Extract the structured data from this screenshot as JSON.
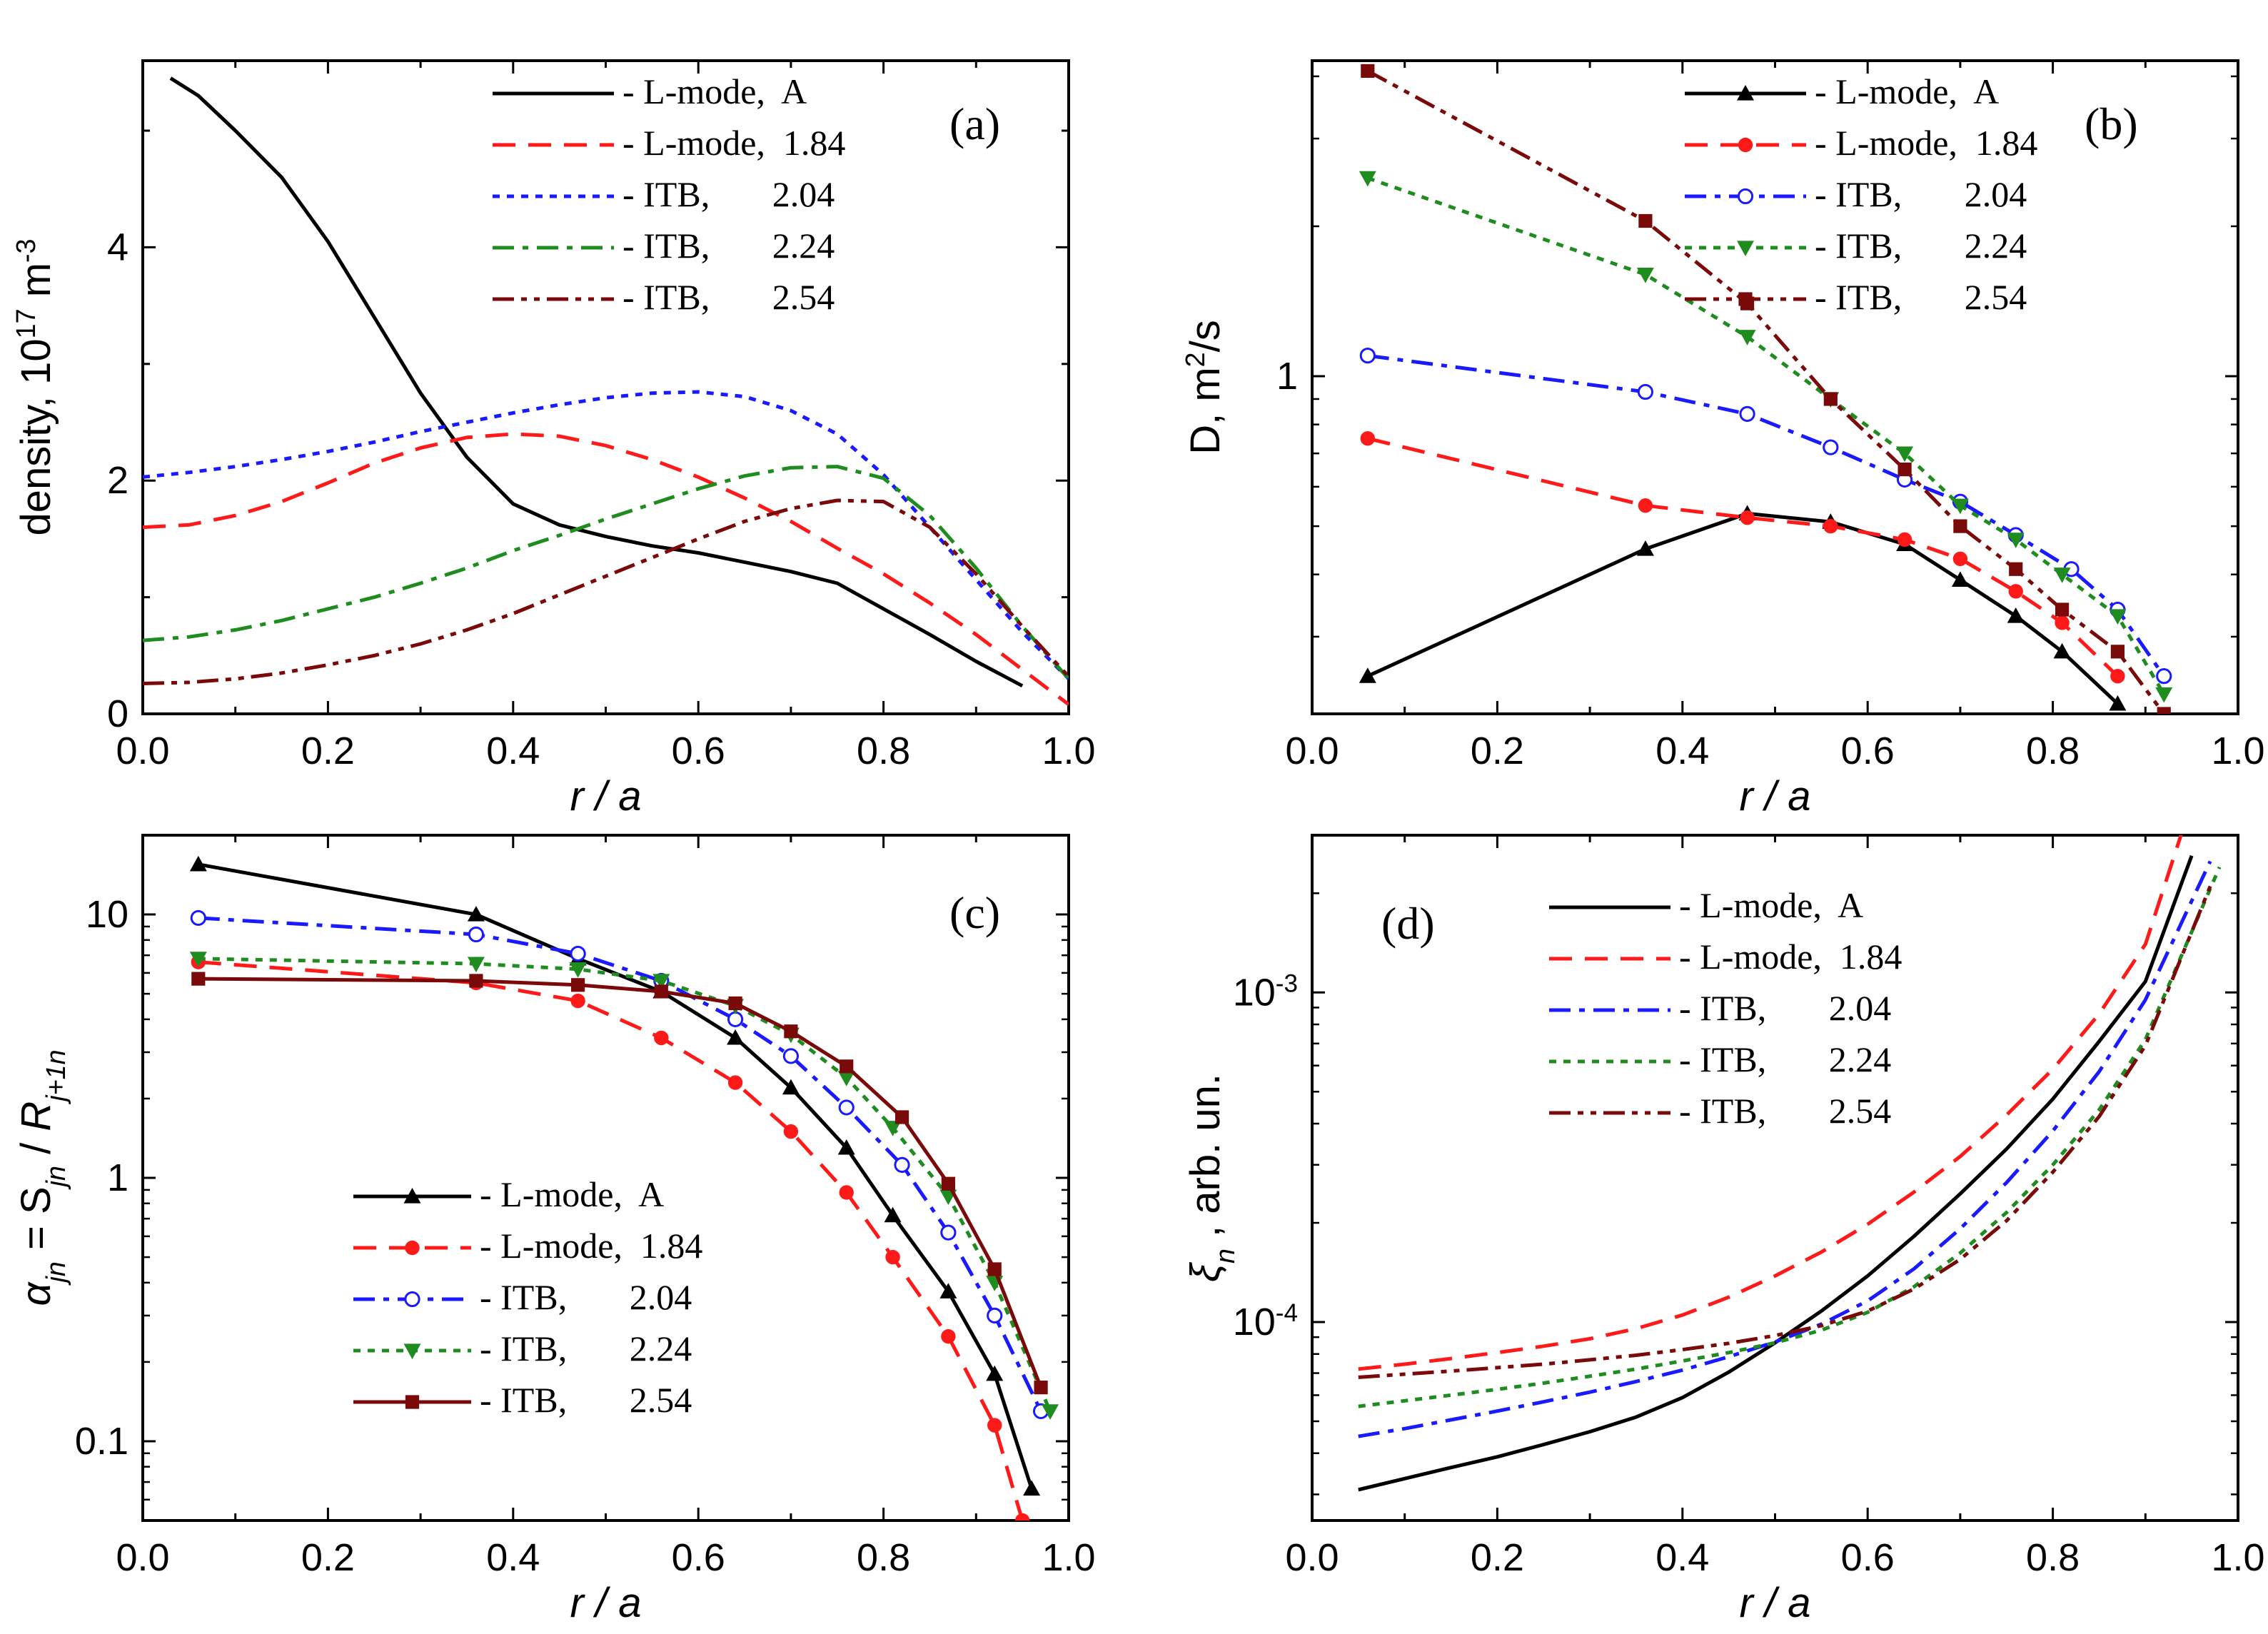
{
  "figure": {
    "colors": {
      "black": "#000000",
      "red": "#ff1a1a",
      "blue": "#1a1aff",
      "green": "#1e8c1e",
      "darkred": "#7a0a0a"
    }
  },
  "chart_data": [
    {
      "id": "a",
      "type": "line",
      "tag": "(a)",
      "xlabel": "r / a",
      "ylabel": "density, 10^17 m^-3",
      "xlim": [
        0.0,
        1.0
      ],
      "ylim": [
        0.0,
        5.6
      ],
      "yscale": "linear",
      "xticks": [
        0.0,
        0.2,
        0.4,
        0.6,
        0.8,
        1.0
      ],
      "xtick_labels": [
        "0.0",
        "0.2",
        "0.4",
        "0.6",
        "0.8",
        "1.0"
      ],
      "yticks": [
        0,
        2,
        4
      ],
      "ytick_labels": [
        "0",
        "2",
        "4"
      ],
      "legend_position": "top-center",
      "series": [
        {
          "name": "- L-mode,  A",
          "style": "solid",
          "color": "#000000",
          "marker": null,
          "x": [
            0.03,
            0.06,
            0.1,
            0.15,
            0.2,
            0.25,
            0.3,
            0.35,
            0.4,
            0.45,
            0.5,
            0.55,
            0.6,
            0.65,
            0.7,
            0.75,
            0.8,
            0.85,
            0.9,
            0.95
          ],
          "y": [
            5.45,
            5.3,
            5.0,
            4.6,
            4.05,
            3.4,
            2.75,
            2.2,
            1.8,
            1.62,
            1.52,
            1.44,
            1.38,
            1.3,
            1.22,
            1.12,
            0.9,
            0.68,
            0.45,
            0.24
          ]
        },
        {
          "name": "- L-mode,  1.84",
          "style": "dash",
          "color": "#ff1a1a",
          "marker": null,
          "x": [
            0.0,
            0.05,
            0.1,
            0.15,
            0.2,
            0.25,
            0.3,
            0.35,
            0.4,
            0.45,
            0.5,
            0.55,
            0.6,
            0.65,
            0.7,
            0.75,
            0.8,
            0.85,
            0.9,
            0.95,
            1.0
          ],
          "y": [
            1.6,
            1.62,
            1.7,
            1.82,
            1.98,
            2.15,
            2.28,
            2.37,
            2.4,
            2.38,
            2.3,
            2.18,
            2.03,
            1.85,
            1.65,
            1.42,
            1.2,
            0.95,
            0.68,
            0.38,
            0.08
          ]
        },
        {
          "name": "- ITB,       2.04",
          "style": "dot",
          "color": "#1a1aff",
          "marker": null,
          "x": [
            0.0,
            0.05,
            0.1,
            0.15,
            0.2,
            0.25,
            0.3,
            0.35,
            0.4,
            0.45,
            0.5,
            0.55,
            0.6,
            0.65,
            0.7,
            0.75,
            0.8,
            0.85,
            0.9,
            0.95,
            1.0
          ],
          "y": [
            2.03,
            2.07,
            2.12,
            2.18,
            2.25,
            2.33,
            2.42,
            2.5,
            2.58,
            2.65,
            2.71,
            2.75,
            2.76,
            2.72,
            2.6,
            2.4,
            2.05,
            1.6,
            1.15,
            0.7,
            0.3
          ]
        },
        {
          "name": "- ITB,       2.24",
          "style": "dashdot",
          "color": "#1e8c1e",
          "marker": null,
          "x": [
            0.0,
            0.05,
            0.1,
            0.15,
            0.2,
            0.25,
            0.3,
            0.35,
            0.4,
            0.45,
            0.5,
            0.55,
            0.6,
            0.65,
            0.7,
            0.75,
            0.8,
            0.85,
            0.9,
            0.95,
            1.0
          ],
          "y": [
            0.63,
            0.66,
            0.72,
            0.8,
            0.9,
            1.0,
            1.12,
            1.25,
            1.4,
            1.53,
            1.67,
            1.8,
            1.93,
            2.04,
            2.11,
            2.12,
            2.02,
            1.7,
            1.25,
            0.75,
            0.3
          ]
        },
        {
          "name": "- ITB,       2.54",
          "style": "dashdotdot",
          "color": "#7a0a0a",
          "marker": null,
          "x": [
            0.0,
            0.05,
            0.1,
            0.15,
            0.2,
            0.25,
            0.3,
            0.35,
            0.4,
            0.45,
            0.5,
            0.55,
            0.6,
            0.65,
            0.7,
            0.75,
            0.8,
            0.85,
            0.9,
            0.95,
            1.0
          ],
          "y": [
            0.26,
            0.27,
            0.3,
            0.35,
            0.42,
            0.5,
            0.6,
            0.72,
            0.86,
            1.02,
            1.18,
            1.34,
            1.5,
            1.65,
            1.76,
            1.83,
            1.82,
            1.6,
            1.2,
            0.75,
            0.32
          ]
        }
      ]
    },
    {
      "id": "b",
      "type": "line",
      "tag": "(b)",
      "xlabel": "r / a",
      "ylabel": "D,  m^2/s",
      "xlim": [
        0.0,
        1.0
      ],
      "ylim": [
        0.21,
        4.3
      ],
      "yscale": "log",
      "xticks": [
        0.0,
        0.2,
        0.4,
        0.6,
        0.8,
        1.0
      ],
      "xtick_labels": [
        "0.0",
        "0.2",
        "0.4",
        "0.6",
        "0.8",
        "1.0"
      ],
      "yticks": [
        1
      ],
      "ytick_labels": [
        "1"
      ],
      "legend_position": "top-center",
      "series": [
        {
          "name": "- L-mode,  A",
          "style": "solid",
          "color": "#000000",
          "marker": "triangle-up",
          "x": [
            0.06,
            0.36,
            0.47,
            0.56,
            0.64,
            0.7,
            0.76,
            0.81,
            0.87
          ],
          "y": [
            0.25,
            0.45,
            0.53,
            0.51,
            0.46,
            0.39,
            0.33,
            0.28,
            0.22
          ]
        },
        {
          "name": "- L-mode,  1.84",
          "style": "dash",
          "color": "#ff1a1a",
          "marker": "circle",
          "x": [
            0.06,
            0.36,
            0.47,
            0.56,
            0.64,
            0.7,
            0.76,
            0.81,
            0.87
          ],
          "y": [
            0.75,
            0.55,
            0.52,
            0.5,
            0.47,
            0.43,
            0.37,
            0.32,
            0.25
          ]
        },
        {
          "name": "- ITB,       2.04",
          "style": "dashdot",
          "color": "#1a1aff",
          "marker": "circle-open",
          "x": [
            0.06,
            0.36,
            0.47,
            0.56,
            0.64,
            0.7,
            0.76,
            0.82,
            0.87,
            0.92
          ],
          "y": [
            1.1,
            0.93,
            0.84,
            0.72,
            0.62,
            0.56,
            0.48,
            0.41,
            0.34,
            0.25
          ]
        },
        {
          "name": "- ITB,       2.24",
          "style": "dot",
          "color": "#1e8c1e",
          "marker": "triangle-down",
          "x": [
            0.06,
            0.36,
            0.47,
            0.56,
            0.64,
            0.7,
            0.76,
            0.81,
            0.87,
            0.92
          ],
          "y": [
            2.5,
            1.6,
            1.2,
            0.9,
            0.7,
            0.55,
            0.47,
            0.4,
            0.33,
            0.23
          ]
        },
        {
          "name": "- ITB,       2.54",
          "style": "dashdotdot",
          "color": "#7a0a0a",
          "marker": "square",
          "x": [
            0.06,
            0.36,
            0.47,
            0.56,
            0.64,
            0.7,
            0.76,
            0.81,
            0.87,
            0.92
          ],
          "y": [
            4.1,
            2.05,
            1.4,
            0.9,
            0.65,
            0.5,
            0.41,
            0.34,
            0.28,
            0.21
          ]
        }
      ]
    },
    {
      "id": "c",
      "type": "line",
      "tag": "(c)",
      "xlabel": "r / a",
      "ylabel": "α_jn = S_jn / R_j+1n",
      "xlim": [
        0.0,
        1.0
      ],
      "ylim": [
        0.05,
        20.0
      ],
      "yscale": "log",
      "xticks": [
        0.0,
        0.2,
        0.4,
        0.6,
        0.8,
        1.0
      ],
      "xtick_labels": [
        "0.0",
        "0.2",
        "0.4",
        "0.6",
        "0.8",
        "1.0"
      ],
      "yticks": [
        0.1,
        1,
        10
      ],
      "ytick_labels": [
        "0.1",
        "1",
        "10"
      ],
      "legend_position": "bottom-left",
      "series": [
        {
          "name": "- L-mode,  A",
          "style": "solid",
          "color": "#000000",
          "marker": "triangle-up",
          "x": [
            0.06,
            0.36,
            0.47,
            0.56,
            0.64,
            0.7,
            0.76,
            0.81,
            0.87,
            0.92,
            0.96
          ],
          "y": [
            15.5,
            10.0,
            6.8,
            5.1,
            3.4,
            2.2,
            1.3,
            0.72,
            0.37,
            0.18,
            0.066
          ]
        },
        {
          "name": "- L-mode,  1.84",
          "style": "dash",
          "color": "#ff1a1a",
          "marker": "circle",
          "x": [
            0.06,
            0.36,
            0.47,
            0.56,
            0.64,
            0.7,
            0.76,
            0.81,
            0.87,
            0.92,
            0.95
          ],
          "y": [
            6.6,
            5.5,
            4.7,
            3.4,
            2.3,
            1.5,
            0.88,
            0.5,
            0.25,
            0.115,
            0.05
          ]
        },
        {
          "name": "- ITB,       2.04",
          "style": "dashdot",
          "color": "#1a1aff",
          "marker": "circle-open",
          "x": [
            0.06,
            0.36,
            0.47,
            0.56,
            0.64,
            0.7,
            0.76,
            0.82,
            0.87,
            0.92,
            0.97
          ],
          "y": [
            9.7,
            8.4,
            7.1,
            5.6,
            4.0,
            2.9,
            1.85,
            1.12,
            0.62,
            0.3,
            0.13
          ]
        },
        {
          "name": "- ITB,       2.24",
          "style": "dot",
          "color": "#1e8c1e",
          "marker": "triangle-down",
          "x": [
            0.06,
            0.36,
            0.47,
            0.56,
            0.64,
            0.7,
            0.76,
            0.81,
            0.87,
            0.92,
            0.98
          ],
          "y": [
            6.8,
            6.5,
            6.2,
            5.6,
            4.5,
            3.5,
            2.4,
            1.55,
            0.85,
            0.4,
            0.13
          ]
        },
        {
          "name": "- ITB,       2.54",
          "style": "solid",
          "color": "#7a0a0a",
          "marker": "square",
          "x": [
            0.06,
            0.36,
            0.47,
            0.56,
            0.64,
            0.7,
            0.76,
            0.82,
            0.87,
            0.92,
            0.97
          ],
          "y": [
            5.7,
            5.6,
            5.4,
            5.1,
            4.6,
            3.6,
            2.65,
            1.7,
            0.95,
            0.45,
            0.16
          ]
        }
      ]
    },
    {
      "id": "d",
      "type": "line",
      "tag": "(d)",
      "xlabel": "r / a",
      "ylabel": "ξ_n ,  arb. un.",
      "xlim": [
        0.0,
        1.0
      ],
      "ylim": [
        2.5e-05,
        0.003
      ],
      "yscale": "log",
      "xticks": [
        0.0,
        0.2,
        0.4,
        0.6,
        0.8,
        1.0
      ],
      "xtick_labels": [
        "0.0",
        "0.2",
        "0.4",
        "0.6",
        "0.8",
        "1.0"
      ],
      "yticks": [
        0.0001,
        0.001
      ],
      "ytick_labels": [
        "10^-4",
        "10^-3"
      ],
      "legend_position": "top-center",
      "series": [
        {
          "name": "- L-mode,  A",
          "style": "solid",
          "color": "#000000",
          "marker": null,
          "x": [
            0.05,
            0.1,
            0.15,
            0.2,
            0.25,
            0.3,
            0.35,
            0.4,
            0.45,
            0.5,
            0.55,
            0.6,
            0.65,
            0.7,
            0.75,
            0.8,
            0.85,
            0.9,
            0.95
          ],
          "y": [
            3.1e-05,
            3.35e-05,
            3.62e-05,
            3.9e-05,
            4.25e-05,
            4.65e-05,
            5.15e-05,
            5.9e-05,
            7.05e-05,
            8.65e-05,
            0.000108,
            0.000138,
            0.000182,
            0.000245,
            0.000335,
            0.000475,
            0.00071,
            0.00108,
            0.0026
          ]
        },
        {
          "name": "- L-mode,  1.84",
          "style": "dash",
          "color": "#ff1a1a",
          "marker": null,
          "x": [
            0.05,
            0.1,
            0.15,
            0.2,
            0.25,
            0.3,
            0.35,
            0.4,
            0.45,
            0.5,
            0.55,
            0.6,
            0.65,
            0.7,
            0.75,
            0.8,
            0.85,
            0.9,
            0.94
          ],
          "y": [
            7.2e-05,
            7.45e-05,
            7.75e-05,
            8.08e-05,
            8.45e-05,
            8.9e-05,
            9.55e-05,
            0.000105,
            0.000119,
            0.000138,
            0.000163,
            0.000198,
            0.000248,
            0.000318,
            0.000425,
            0.000585,
            0.00086,
            0.0014,
            0.0031
          ]
        },
        {
          "name": "- ITB,       2.04",
          "style": "dashdot",
          "color": "#1a1aff",
          "marker": null,
          "x": [
            0.05,
            0.1,
            0.15,
            0.2,
            0.25,
            0.3,
            0.35,
            0.4,
            0.45,
            0.5,
            0.55,
            0.6,
            0.65,
            0.7,
            0.75,
            0.8,
            0.85,
            0.9,
            0.97
          ],
          "y": [
            4.5e-05,
            4.75e-05,
            5.05e-05,
            5.37e-05,
            5.73e-05,
            6.13e-05,
            6.6e-05,
            7.15e-05,
            7.85e-05,
            8.7e-05,
            9.85e-05,
            0.000116,
            0.000145,
            0.000192,
            0.000265,
            0.00038,
            0.000575,
            0.00095,
            0.0025
          ]
        },
        {
          "name": "- ITB,       2.24",
          "style": "dot",
          "color": "#1e8c1e",
          "marker": null,
          "x": [
            0.05,
            0.1,
            0.15,
            0.2,
            0.25,
            0.3,
            0.35,
            0.4,
            0.45,
            0.5,
            0.55,
            0.6,
            0.65,
            0.7,
            0.75,
            0.8,
            0.85,
            0.9,
            0.98
          ],
          "y": [
            5.55e-05,
            5.77e-05,
            6e-05,
            6.25e-05,
            6.53e-05,
            6.85e-05,
            7.2e-05,
            7.62e-05,
            8.08e-05,
            8.65e-05,
            9.45e-05,
            0.000107,
            0.000128,
            0.000162,
            0.000215,
            0.0003,
            0.00044,
            0.00072,
            0.0024
          ]
        },
        {
          "name": "- ITB,       2.54",
          "style": "dashdotdot",
          "color": "#7a0a0a",
          "marker": null,
          "x": [
            0.05,
            0.1,
            0.15,
            0.2,
            0.25,
            0.3,
            0.35,
            0.4,
            0.45,
            0.5,
            0.55,
            0.6,
            0.65,
            0.7,
            0.75,
            0.8,
            0.85,
            0.9,
            0.97
          ],
          "y": [
            6.8e-05,
            6.95e-05,
            7.1e-05,
            7.27e-05,
            7.45e-05,
            7.68e-05,
            7.93e-05,
            8.25e-05,
            8.62e-05,
            9.1e-05,
            9.75e-05,
            0.000108,
            0.000126,
            0.000155,
            0.000203,
            0.000285,
            0.00042,
            0.00069,
            0.0021
          ]
        }
      ]
    }
  ]
}
